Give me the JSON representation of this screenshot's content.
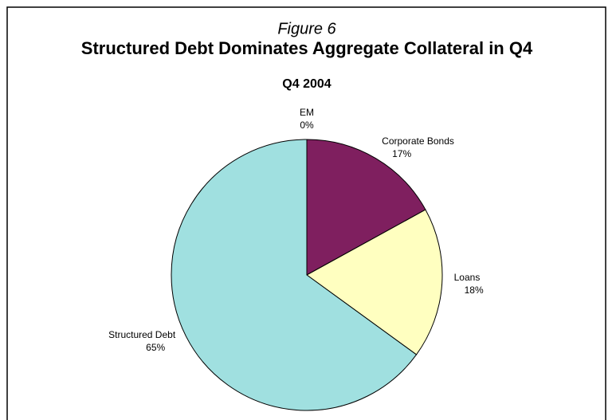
{
  "chart_data": {
    "type": "pie",
    "figure_label": "Figure 6",
    "title": "Structured Debt Dominates Aggregate Collateral in Q4",
    "subtitle": "Q4 2004",
    "categories": [
      "EM",
      "Corporate Bonds",
      "Loans",
      "Structured Debt"
    ],
    "values": [
      0,
      17,
      18,
      65
    ],
    "value_labels": [
      "0%",
      "17%",
      "18%",
      "65%"
    ],
    "colors": [
      "#7f7fff",
      "#7f1f5f",
      "#ffffc0",
      "#a0e0e0"
    ]
  }
}
